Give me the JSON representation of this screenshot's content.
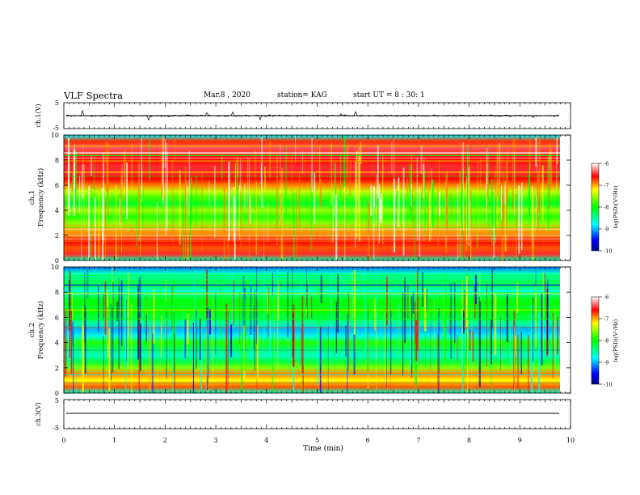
{
  "header": {
    "title": "VLF Spectra",
    "date": "Mar.8 , 2020",
    "station": "station= KAG",
    "start": "start UT =  8 : 30: 1"
  },
  "chart_data": [
    {
      "type": "line",
      "ylabel": "ch.1(V)",
      "yticks": [
        "5",
        "-5"
      ],
      "ylim": [
        -5,
        5
      ],
      "xlim": [
        0,
        10
      ],
      "y_level": 0
    },
    {
      "type": "heatmap",
      "ylabel": "ch.1\nFrequency (kHz)",
      "yticks": [
        "0",
        "2",
        "4",
        "6",
        "8",
        "10"
      ],
      "ylim": [
        0,
        10
      ],
      "xlim": [
        0,
        10
      ],
      "colorbar": {
        "label": "log(PSD)(V²/Hz)",
        "ticks": [
          "-6",
          "-7",
          "-8",
          "-9",
          "-10"
        ],
        "range": [
          -10,
          -6
        ]
      },
      "profile_freq_khz": [
        0,
        0.5,
        1,
        1.5,
        2,
        2.5,
        3,
        3.5,
        4,
        4.5,
        5,
        5.5,
        6,
        6.5,
        7,
        7.5,
        8,
        8.5,
        9,
        9.5,
        10
      ],
      "profile_log_psd": [
        -8.5,
        -6.5,
        -6.8,
        -6.6,
        -6.9,
        -7.0,
        -7.6,
        -7.9,
        -7.5,
        -8.1,
        -7.8,
        -7.4,
        -6.9,
        -6.6,
        -6.5,
        -6.5,
        -6.6,
        -6.5,
        -6.4,
        -6.7,
        -8.8
      ]
    },
    {
      "type": "heatmap",
      "ylabel": "ch.2\nFrequency (kHz)",
      "yticks": [
        "0",
        "2",
        "4",
        "6",
        "8",
        "10"
      ],
      "ylim": [
        0,
        10
      ],
      "xlim": [
        0,
        10
      ],
      "colorbar": {
        "label": "log(PSD)(V²/Hz)",
        "ticks": [
          "-6",
          "-7",
          "-8",
          "-9",
          "-10"
        ],
        "range": [
          -10,
          -6
        ]
      },
      "profile_freq_khz": [
        0,
        0.5,
        1,
        1.5,
        2,
        2.5,
        3,
        3.5,
        4,
        4.5,
        5,
        5.5,
        6,
        6.5,
        7,
        7.5,
        8,
        8.5,
        9,
        9.5,
        10
      ],
      "profile_log_psd": [
        -8.6,
        -6.8,
        -7.2,
        -6.9,
        -7.6,
        -8.2,
        -8.6,
        -8.3,
        -7.9,
        -8.7,
        -9.0,
        -8.5,
        -8.2,
        -8.0,
        -8.0,
        -8.1,
        -8.8,
        -8.2,
        -8.3,
        -8.6,
        -9.2
      ]
    },
    {
      "type": "line",
      "ylabel": "ch.3(V)",
      "yticks": [
        "5",
        "-5"
      ],
      "ylim": [
        -5,
        5
      ],
      "xlim": [
        0,
        10
      ],
      "xlabel": "Time (min)",
      "xticks": [
        "0",
        "1",
        "2",
        "3",
        "4",
        "5",
        "6",
        "7",
        "8",
        "9",
        "10"
      ],
      "y_level": 0
    }
  ]
}
